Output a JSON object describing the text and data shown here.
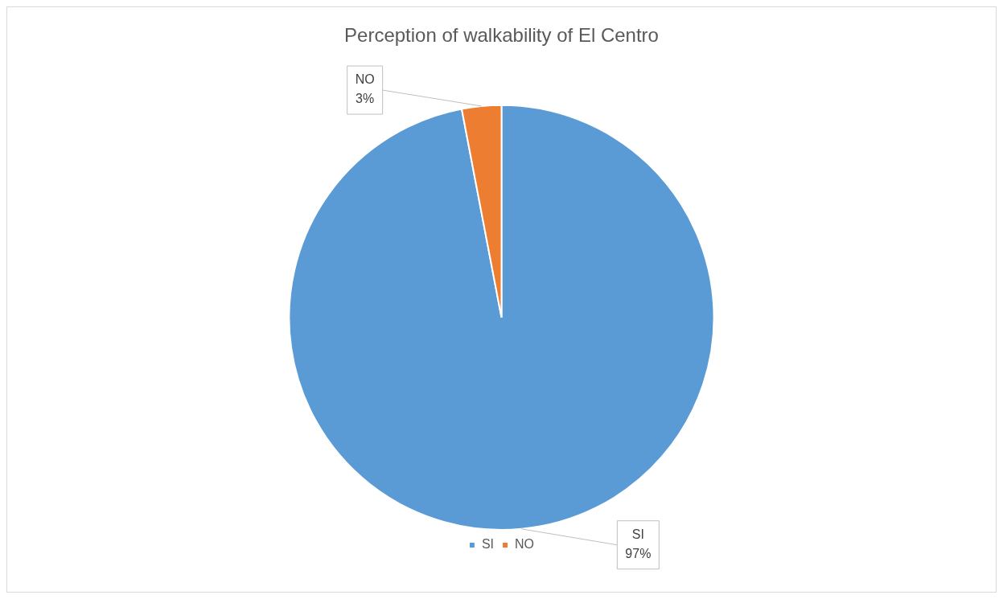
{
  "chart_data": {
    "type": "pie",
    "title": "Perception of walkability of El Centro",
    "categories": [
      "SI",
      "NO"
    ],
    "values": [
      97,
      3
    ],
    "colors": [
      "#5b9bd5",
      "#ed7d31"
    ],
    "value_labels": [
      "97%",
      "3%"
    ],
    "legend": "bottom"
  }
}
